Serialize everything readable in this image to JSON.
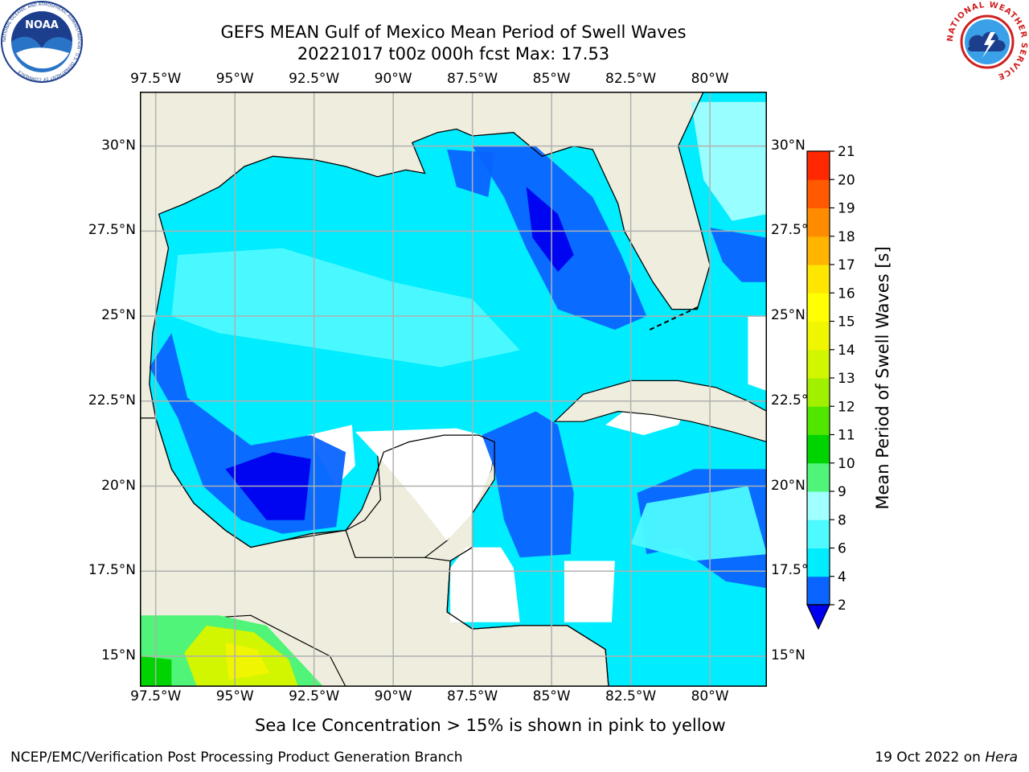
{
  "header": {
    "title_line1": "GEFS MEAN Gulf of Mexico Mean Period of Swell Waves",
    "title_line2": "20221017 t00z 000h fcst   Max: 17.53"
  },
  "logos": {
    "left": "NOAA",
    "left_ring_text": "NATIONAL OCEANIC AND ATMOSPHERIC ADMINISTRATION · U.S. DEPARTMENT OF COMMERCE",
    "right_ring_text": "NATIONAL WEATHER SERVICE"
  },
  "map": {
    "lon_ticks_top": [
      "97.5°W",
      "95°W",
      "92.5°W",
      "90°W",
      "87.5°W",
      "85°W",
      "82.5°W",
      "80°W"
    ],
    "lon_ticks_bottom": [
      "97.5°W",
      "95°W",
      "92.5°W",
      "90°W",
      "87.5°W",
      "85°W",
      "82.5°W",
      "80°W"
    ],
    "lat_ticks_left": [
      "30°N",
      "27.5°N",
      "25°N",
      "22.5°N",
      "20°N",
      "17.5°N",
      "15°N"
    ],
    "lat_ticks_right": [
      "30°N",
      "27.5°N",
      "25°N",
      "22.5°N",
      "20°N",
      "17.5°N",
      "15°N"
    ],
    "extent": {
      "lon_min": -98,
      "lon_max": -78.2,
      "lat_min": 14.1,
      "lat_max": 31.6
    },
    "colors": {
      "land": "#efedde",
      "coast": "#000000",
      "grid": "#b0b0b0",
      "nodata": "#ffffff"
    }
  },
  "colorbar": {
    "label": "Mean Period of Swell Waves [s]",
    "ticks": [
      "2",
      "4",
      "6",
      "8",
      "9",
      "10",
      "11",
      "12",
      "13",
      "14",
      "15",
      "16",
      "17",
      "18",
      "19",
      "20",
      "21"
    ],
    "colors": [
      "#0a64ff",
      "#00ecff",
      "#4dfaff",
      "#a0ffff",
      "#50f478",
      "#00d400",
      "#50e600",
      "#a0f000",
      "#d2f500",
      "#f0f500",
      "#ffff00",
      "#ffe600",
      "#ffb400",
      "#ff8c00",
      "#ff5a00",
      "#ff2800",
      "#ff0000"
    ],
    "extend_color": "#0000f0"
  },
  "footnote": "Sea Ice Concentration > 15% is shown in pink to yellow",
  "footer": {
    "left": "NCEP/EMC/Verification Post Processing Product Generation Branch",
    "right_prefix": "19 Oct 2022 on ",
    "right_host": "Hera"
  }
}
